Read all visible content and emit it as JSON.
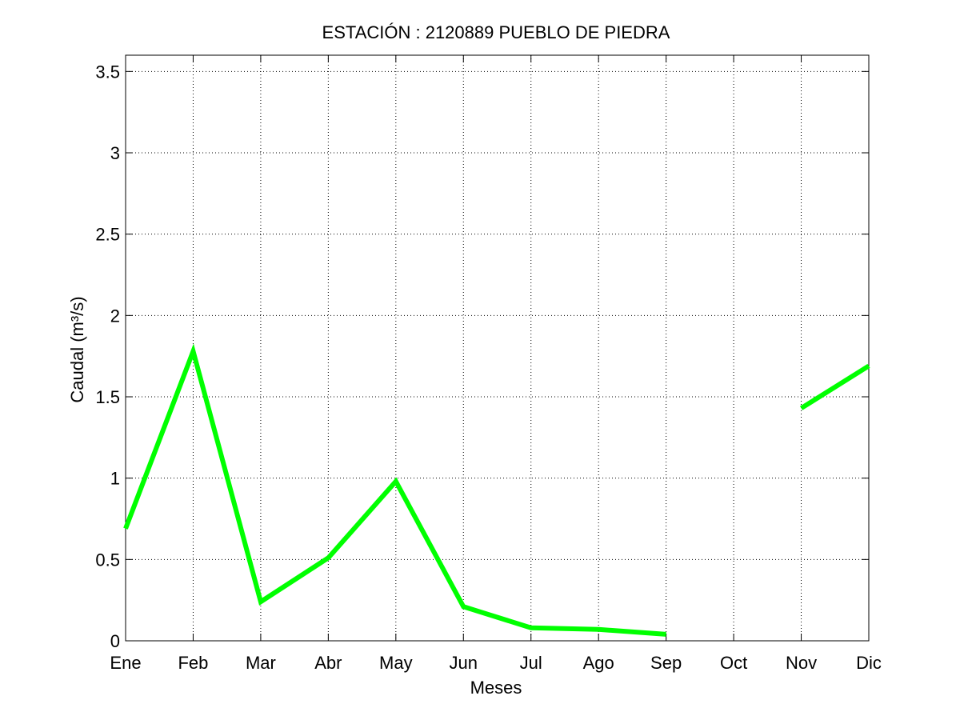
{
  "chart_data": {
    "type": "line",
    "title": "ESTACIÓN :  2120889  PUEBLO DE PIEDRA",
    "xlabel": "Meses",
    "ylabel": "Caudal (m³/s)",
    "categories": [
      "Ene",
      "Feb",
      "Mar",
      "Abr",
      "May",
      "Jun",
      "Jul",
      "Ago",
      "Sep",
      "Oct",
      "Nov",
      "Dic"
    ],
    "yticks": [
      "0",
      "0.5",
      "1",
      "1.5",
      "2",
      "2.5",
      "3",
      "3.5"
    ],
    "ytick_values": [
      0,
      0.5,
      1,
      1.5,
      2,
      2.5,
      3,
      3.5
    ],
    "ylim": [
      0,
      3.6
    ],
    "grid": true,
    "series": [
      {
        "color": "#00ff00",
        "values": [
          0.69,
          1.78,
          0.24,
          0.51,
          0.98,
          0.21,
          0.08,
          0.07,
          0.04,
          null,
          1.43,
          1.69
        ]
      }
    ]
  }
}
